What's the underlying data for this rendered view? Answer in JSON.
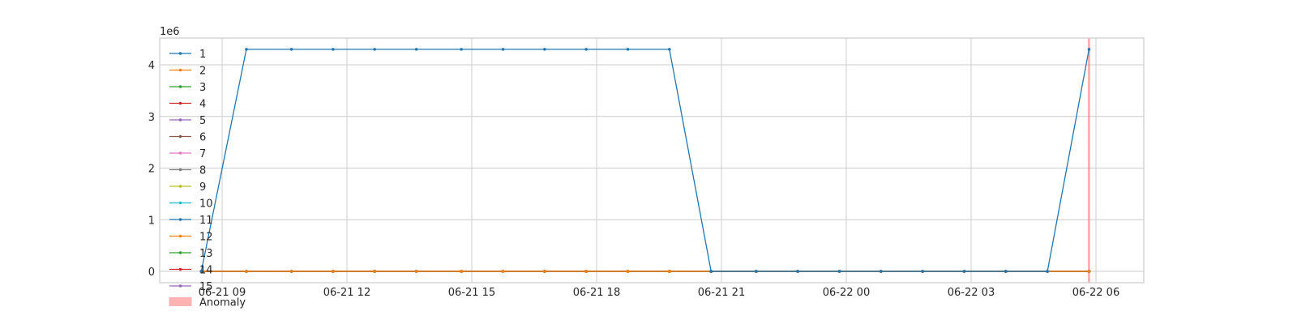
{
  "chart_data": {
    "type": "line",
    "title": "",
    "xlabel": "",
    "ylabel": "",
    "y_multiplier": "1e6",
    "ylim": [
      -0.2,
      4.5
    ],
    "y_ticks": [
      0,
      1,
      2,
      3,
      4
    ],
    "x_ticks": [
      "06-21 09",
      "06-21 12",
      "06-21 15",
      "06-21 18",
      "06-21 21",
      "06-22 00",
      "06-22 03",
      "06-22 06"
    ],
    "grid": true,
    "legend_placement": "left",
    "x": [
      "06-21 08:30",
      "06-21 09:35",
      "06-21 10:40",
      "06-21 11:40",
      "06-21 12:40",
      "06-21 13:40",
      "06-21 14:45",
      "06-21 15:45",
      "06-21 16:45",
      "06-21 17:45",
      "06-21 18:45",
      "06-21 19:45",
      "06-21 20:45",
      "06-21 21:50",
      "06-21 22:50",
      "06-21 23:50",
      "06-22 00:50",
      "06-22 01:50",
      "06-22 02:50",
      "06-22 03:50",
      "06-22 04:50",
      "06-22 05:50"
    ],
    "series": [
      {
        "name": "1",
        "color": "#1f77b4",
        "values": [
          0,
          4.3,
          4.3,
          4.3,
          4.3,
          4.3,
          4.3,
          4.3,
          4.3,
          4.3,
          4.3,
          4.3,
          0,
          0,
          0,
          0,
          0,
          0,
          0,
          0,
          0,
          4.3
        ]
      },
      {
        "name": "2",
        "color": "#ff7f0e",
        "values": [
          0,
          0,
          0,
          0,
          0,
          0,
          0,
          0,
          0,
          0,
          0,
          0,
          0,
          0,
          0,
          0,
          0,
          0,
          0,
          0,
          0,
          0
        ]
      },
      {
        "name": "3",
        "color": "#2ca02c",
        "values": [
          0,
          0,
          0,
          0,
          0,
          0,
          0,
          0,
          0,
          0,
          0,
          0,
          0,
          0,
          0,
          0,
          0,
          0,
          0,
          0,
          0,
          0
        ]
      },
      {
        "name": "4",
        "color": "#d62728",
        "values": [
          0,
          0,
          0,
          0,
          0,
          0,
          0,
          0,
          0,
          0,
          0,
          0,
          0,
          0,
          0,
          0,
          0,
          0,
          0,
          0,
          0,
          0
        ]
      },
      {
        "name": "5",
        "color": "#9467bd",
        "values": [
          0,
          0,
          0,
          0,
          0,
          0,
          0,
          0,
          0,
          0,
          0,
          0,
          0,
          0,
          0,
          0,
          0,
          0,
          0,
          0,
          0,
          0
        ]
      },
      {
        "name": "6",
        "color": "#8c564b",
        "values": [
          0,
          0,
          0,
          0,
          0,
          0,
          0,
          0,
          0,
          0,
          0,
          0,
          0,
          0,
          0,
          0,
          0,
          0,
          0,
          0,
          0,
          0
        ]
      },
      {
        "name": "7",
        "color": "#e377c2",
        "values": [
          0,
          0,
          0,
          0,
          0,
          0,
          0,
          0,
          0,
          0,
          0,
          0,
          0,
          0,
          0,
          0,
          0,
          0,
          0,
          0,
          0,
          0
        ]
      },
      {
        "name": "8",
        "color": "#7f7f7f",
        "values": [
          0,
          0,
          0,
          0,
          0,
          0,
          0,
          0,
          0,
          0,
          0,
          0,
          0,
          0,
          0,
          0,
          0,
          0,
          0,
          0,
          0,
          0
        ]
      },
      {
        "name": "9",
        "color": "#bcbd22",
        "values": [
          0,
          0,
          0,
          0,
          0,
          0,
          0,
          0,
          0,
          0,
          0,
          0,
          0,
          0,
          0,
          0,
          0,
          0,
          0,
          0,
          0,
          0
        ]
      },
      {
        "name": "10",
        "color": "#17becf",
        "values": [
          0,
          0,
          0,
          0,
          0,
          0,
          0,
          0,
          0,
          0,
          0,
          0,
          0,
          0,
          0,
          0,
          0,
          0,
          0,
          0,
          0,
          0
        ]
      },
      {
        "name": "11",
        "color": "#1f77b4",
        "values": [
          0,
          0,
          0,
          0,
          0,
          0,
          0,
          0,
          0,
          0,
          0,
          0,
          0,
          0,
          0,
          0,
          0,
          0,
          0,
          0,
          0,
          0
        ]
      },
      {
        "name": "12",
        "color": "#ff7f0e",
        "values": [
          0,
          0,
          0,
          0,
          0,
          0,
          0,
          0,
          0,
          0,
          0,
          0,
          0,
          0,
          0,
          0,
          0,
          0,
          0,
          0,
          0,
          0
        ]
      },
      {
        "name": "13",
        "color": "#2ca02c",
        "values": [
          0,
          0,
          0,
          0,
          0,
          0,
          0,
          0,
          0,
          0,
          0,
          0,
          0,
          0,
          0,
          0,
          0,
          0,
          0,
          0,
          0,
          0
        ]
      },
      {
        "name": "14",
        "color": "#d62728",
        "values": [
          0,
          0,
          0,
          0,
          0,
          0,
          0,
          0,
          0,
          0,
          0,
          0,
          0,
          0,
          0,
          0,
          0,
          0,
          0,
          0,
          0,
          0
        ]
      },
      {
        "name": "15",
        "color": "#9467bd",
        "values": [
          0,
          0,
          0,
          0,
          0,
          0,
          0,
          0,
          0,
          0,
          0,
          0,
          0,
          0,
          0,
          0,
          0,
          0,
          0,
          0,
          0,
          0
        ]
      }
    ],
    "anomaly": {
      "label": "Anomaly",
      "color": "#ff8080",
      "at": "06-22 05:50"
    }
  }
}
